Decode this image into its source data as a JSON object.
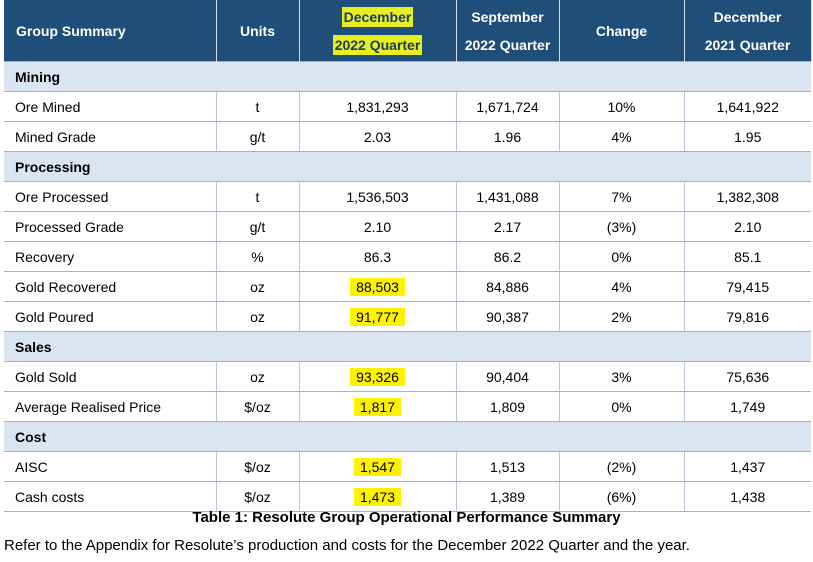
{
  "header": {
    "col0": "Group Summary",
    "col1": "Units",
    "col2_line1": "December",
    "col2_line2": "2022 Quarter",
    "col3_line1": "September",
    "col3_line2": "2022 Quarter",
    "col4": "Change",
    "col5_line1": "December",
    "col5_line2": "2021 Quarter"
  },
  "sections": {
    "mining": "Mining",
    "processing": "Processing",
    "sales": "Sales",
    "cost": "Cost"
  },
  "rows": {
    "ore_mined": [
      "Ore Mined",
      "t",
      "1,831,293",
      "1,671,724",
      "10%",
      "1,641,922"
    ],
    "mined_grade": [
      "Mined Grade",
      "g/t",
      "2.03",
      "1.96",
      "4%",
      "1.95"
    ],
    "ore_processed": [
      "Ore Processed",
      "t",
      "1,536,503",
      "1,431,088",
      "7%",
      "1,382,308"
    ],
    "processed_grade": [
      "Processed Grade",
      "g/t",
      "2.10",
      "2.17",
      "(3%)",
      "2.10"
    ],
    "recovery": [
      "Recovery",
      "%",
      "86.3",
      "86.2",
      "0%",
      "85.1"
    ],
    "gold_recovered": [
      "Gold Recovered",
      "oz",
      "88,503",
      "84,886",
      "4%",
      "79,415"
    ],
    "gold_poured": [
      "Gold Poured",
      "oz",
      "91,777",
      "90,387",
      "2%",
      "79,816"
    ],
    "gold_sold": [
      "Gold Sold",
      "oz",
      "93,326",
      "90,404",
      "3%",
      "75,636"
    ],
    "avg_price": [
      "Average Realised Price",
      "$/oz",
      "1,817",
      "1,809",
      "0%",
      "1,749"
    ],
    "aisc": [
      "AISC",
      "$/oz",
      "1,547",
      "1,513",
      "(2%)",
      "1,437"
    ],
    "cash_costs": [
      "Cash costs",
      "$/oz",
      "1,473",
      "1,389",
      "(6%)",
      "1,438"
    ]
  },
  "caption": "Table 1: Resolute Group Operational Performance Summary",
  "note": "Refer to the Appendix for Resolute’s production and costs for the December 2022 Quarter and the year.",
  "colors": {
    "header_bg": "#1f4e79",
    "section_bg": "#dbe5f1",
    "highlight": "#fff200"
  }
}
